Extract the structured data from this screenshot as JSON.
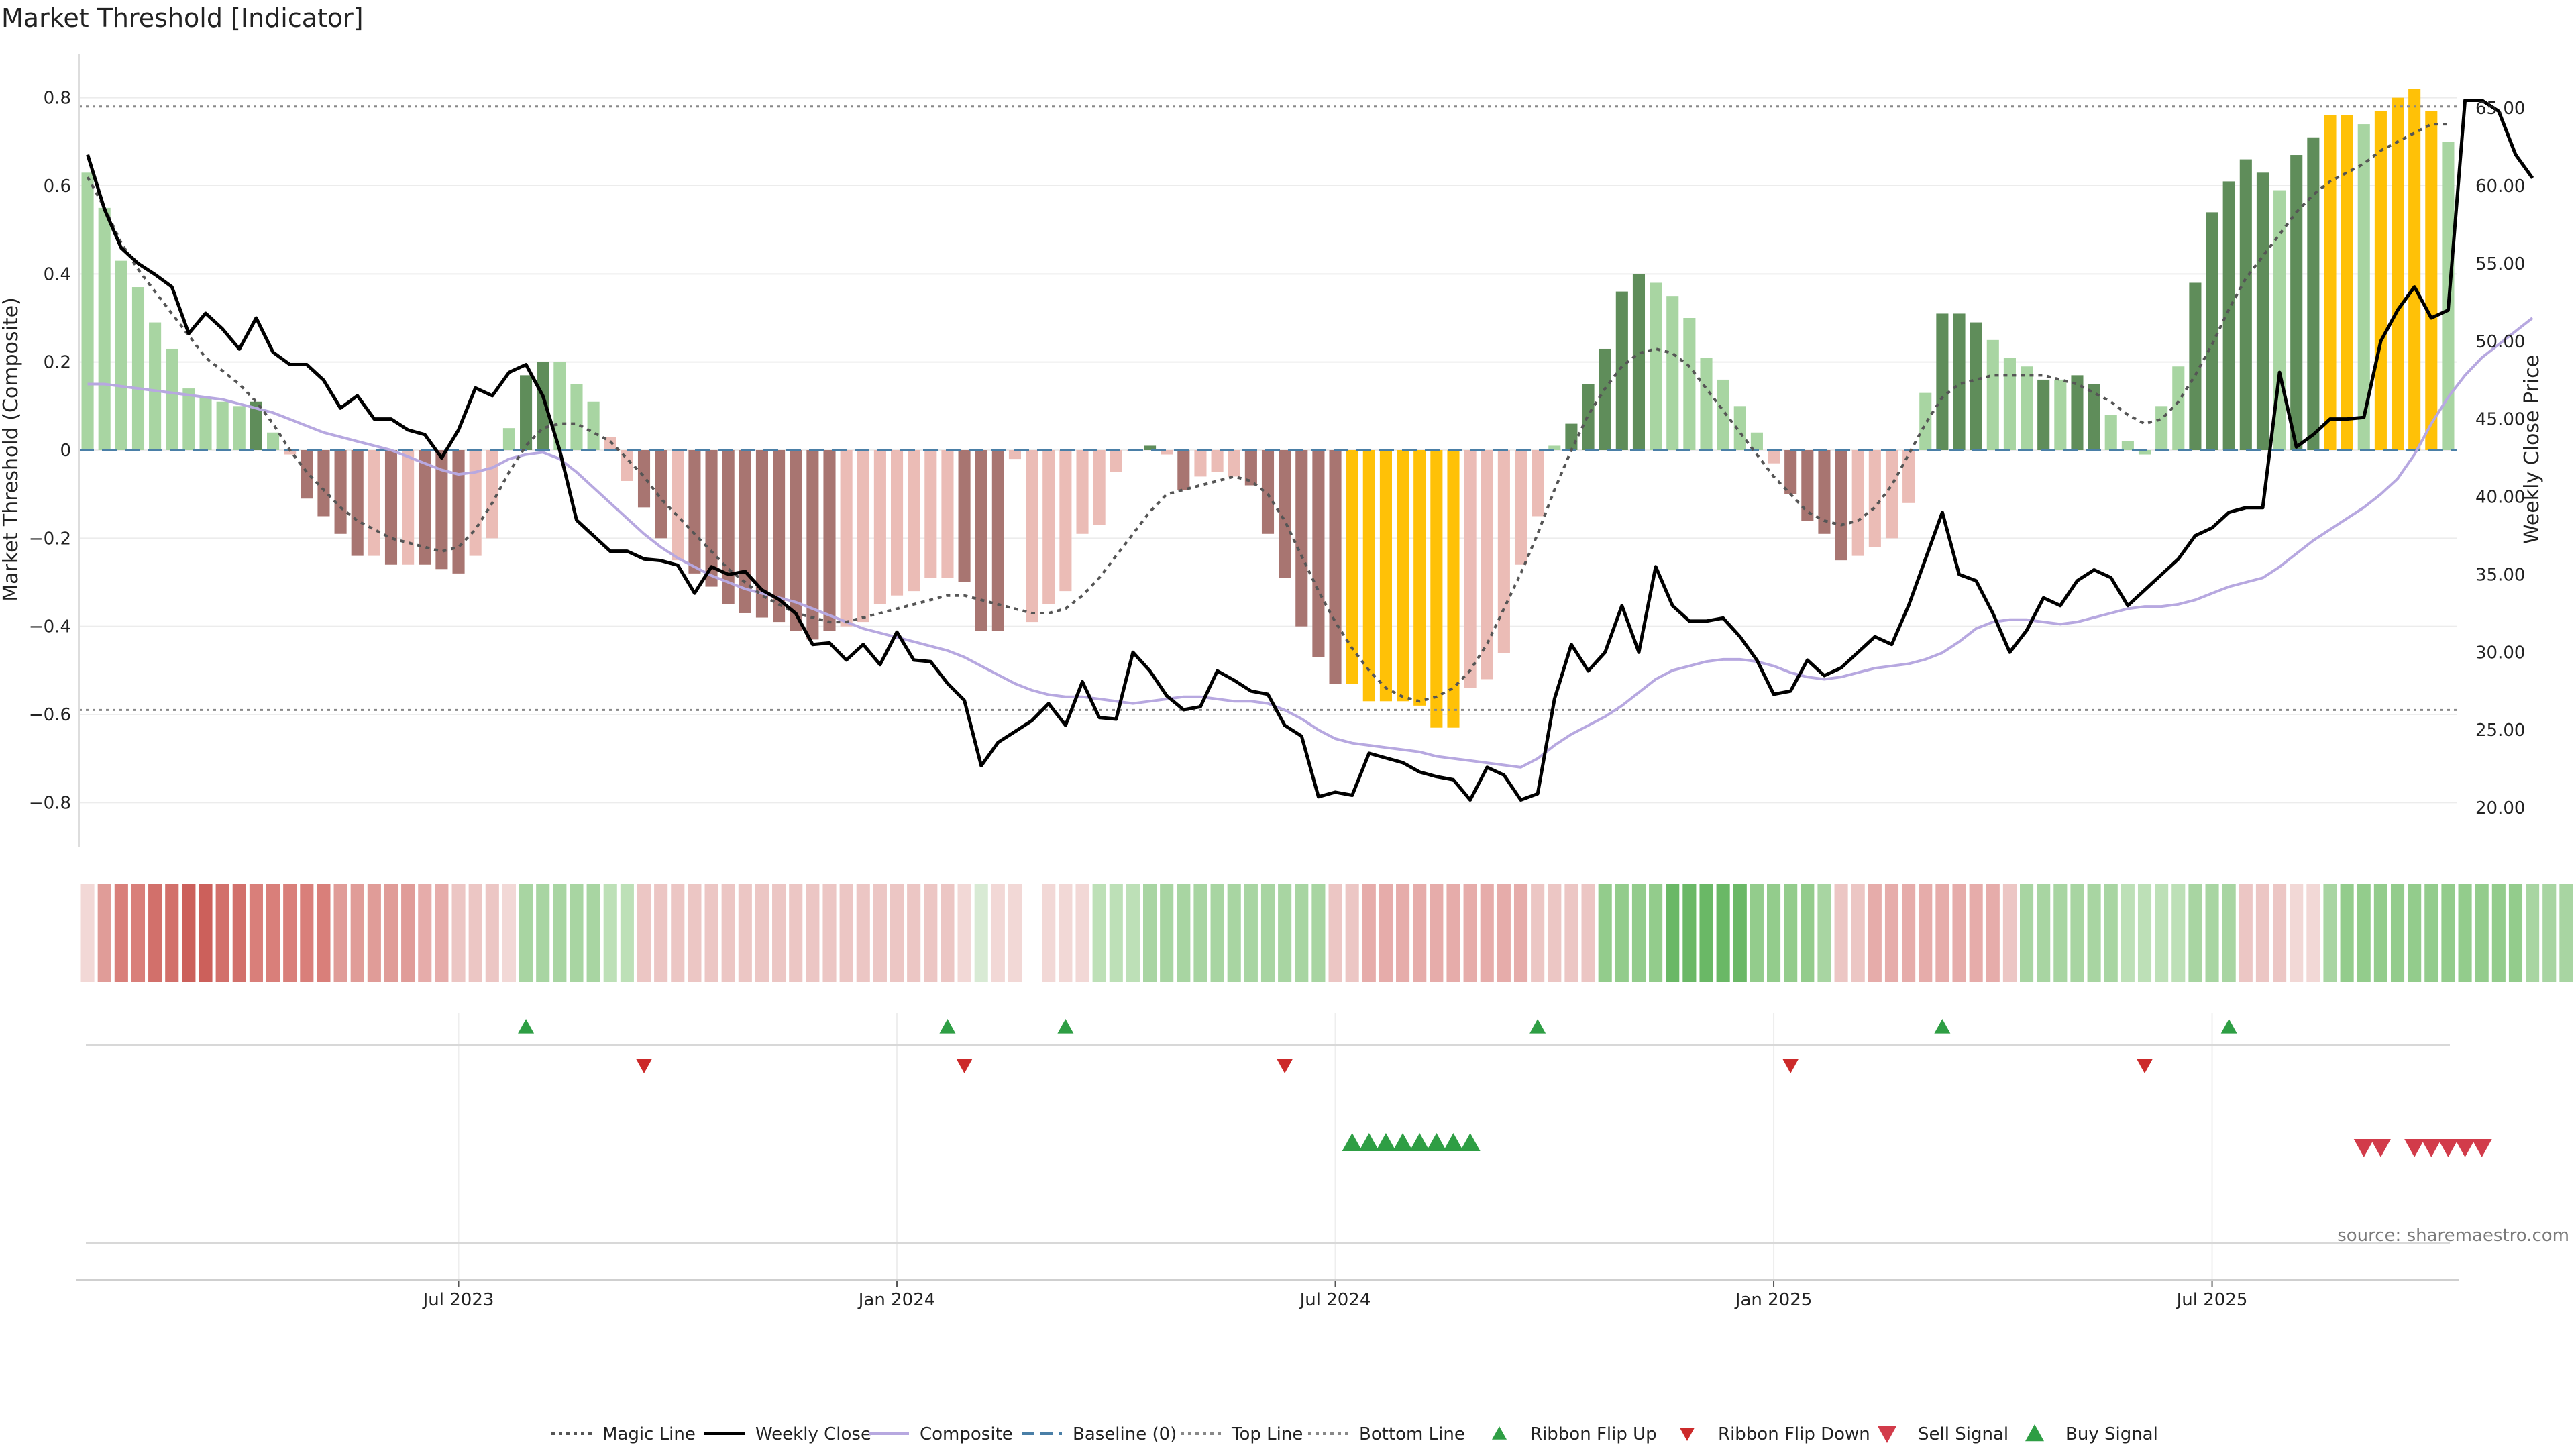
{
  "chart_data": {
    "type": "bar",
    "title": "Market Threshold [Indicator]",
    "ylabel": "Market Threshold (Composite)",
    "y2label": "Weekly Close Price",
    "source": "source: sharemaestro.com",
    "ylim": [
      -0.9,
      0.9
    ],
    "y2lim": [
      17.5,
      68.5
    ],
    "yticks": [
      -0.8,
      -0.6,
      -0.4,
      -0.2,
      0,
      0.2,
      0.4,
      0.6,
      0.8
    ],
    "ytick_labels": [
      "−0.8",
      "−0.6",
      "−0.4",
      "−0.2",
      "0",
      "0.2",
      "0.4",
      "0.6",
      "0.8"
    ],
    "y2ticks": [
      20,
      25,
      30,
      35,
      40,
      45,
      50,
      55,
      60,
      65
    ],
    "y2tick_labels": [
      "20.00",
      "25.00",
      "30.00",
      "35.00",
      "40.00",
      "45.00",
      "50.00",
      "55.00",
      "60.00",
      "65.00"
    ],
    "xticks": [
      {
        "label": "Jul 2023",
        "week": 22
      },
      {
        "label": "Jan 2024",
        "week": 48
      },
      {
        "label": "Jul 2024",
        "week": 74
      },
      {
        "label": "Jan 2025",
        "week": 100
      },
      {
        "label": "Jul 2025",
        "week": 126
      }
    ],
    "top_line": 0.78,
    "bottom_line": -0.59,
    "baseline": 0,
    "composite": [
      0.63,
      0.55,
      0.43,
      0.37,
      0.29,
      0.23,
      0.14,
      0.12,
      0.11,
      0.1,
      0.11,
      0.04,
      -0.01,
      -0.11,
      -0.15,
      -0.19,
      -0.24,
      -0.24,
      -0.26,
      -0.26,
      -0.26,
      -0.27,
      -0.28,
      -0.24,
      -0.2,
      0.05,
      0.17,
      0.2,
      0.2,
      0.15,
      0.11,
      0.03,
      -0.07,
      -0.13,
      -0.2,
      -0.25,
      -0.28,
      -0.31,
      -0.35,
      -0.37,
      -0.38,
      -0.39,
      -0.41,
      -0.43,
      -0.41,
      -0.4,
      -0.39,
      -0.35,
      -0.33,
      -0.32,
      -0.29,
      -0.29,
      -0.3,
      -0.41,
      -0.41,
      -0.02,
      -0.39,
      -0.35,
      -0.32,
      -0.19,
      -0.17,
      -0.05,
      0.0,
      0.01,
      -0.01,
      -0.09,
      -0.06,
      -0.05,
      -0.06,
      -0.08,
      -0.19,
      -0.29,
      -0.4,
      -0.47,
      -0.53,
      -0.53,
      -0.57,
      -0.57,
      -0.57,
      -0.58,
      -0.63,
      -0.63,
      -0.54,
      -0.52,
      -0.46,
      -0.26,
      -0.15,
      0.01,
      0.06,
      0.15,
      0.23,
      0.36,
      0.4,
      0.38,
      0.35,
      0.3,
      0.21,
      0.16,
      0.1,
      0.04,
      -0.03,
      -0.1,
      -0.16,
      -0.19,
      -0.25,
      -0.24,
      -0.22,
      -0.2,
      -0.12,
      0.13,
      0.31,
      0.31,
      0.29,
      0.25,
      0.21,
      0.19,
      0.16,
      0.16,
      0.17,
      0.15,
      0.08,
      0.02,
      -0.01,
      0.1,
      0.19,
      0.38,
      0.54,
      0.61,
      0.66,
      0.63,
      0.59,
      0.67,
      0.71,
      0.76,
      0.76,
      0.74,
      0.77,
      0.8,
      0.82,
      0.77,
      0.7
    ],
    "bar_colors": [
      "#a8d5a2",
      "#a8d5a2",
      "#a8d5a2",
      "#a8d5a2",
      "#a8d5a2",
      "#a8d5a2",
      "#a8d5a2",
      "#a8d5a2",
      "#a8d5a2",
      "#a8d5a2",
      "#5f8d5a",
      "#a8d5a2",
      "#ebbcb6",
      "#a87571",
      "#a87571",
      "#a87571",
      "#a87571",
      "#ebbcb6",
      "#a87571",
      "#ebbcb6",
      "#a87571",
      "#a87571",
      "#a87571",
      "#ebbcb6",
      "#ebbcb6",
      "#a8d5a2",
      "#5f8d5a",
      "#5f8d5a",
      "#a8d5a2",
      "#a8d5a2",
      "#a8d5a2",
      "#ebbcb6",
      "#ebbcb6",
      "#a87571",
      "#a87571",
      "#ebbcb6",
      "#a87571",
      "#a87571",
      "#a87571",
      "#a87571",
      "#a87571",
      "#a87571",
      "#a87571",
      "#a87571",
      "#a87571",
      "#ebbcb6",
      "#ebbcb6",
      "#ebbcb6",
      "#ebbcb6",
      "#ebbcb6",
      "#ebbcb6",
      "#ebbcb6",
      "#a87571",
      "#a87571",
      "#a87571",
      "#ebbcb6",
      "#ebbcb6",
      "#ebbcb6",
      "#ebbcb6",
      "#ebbcb6",
      "#ebbcb6",
      "#ebbcb6",
      "#ebbcb6",
      "#5f8d5a",
      "#ebbcb6",
      "#a87571",
      "#ebbcb6",
      "#ebbcb6",
      "#ebbcb6",
      "#a87571",
      "#a87571",
      "#a87571",
      "#a87571",
      "#a87571",
      "#a87571",
      "#ffc107",
      "#ffc107",
      "#ffc107",
      "#ffc107",
      "#ffc107",
      "#ffc107",
      "#ffc107",
      "#ebbcb6",
      "#ebbcb6",
      "#ebbcb6",
      "#ebbcb6",
      "#ebbcb6",
      "#a8d5a2",
      "#5f8d5a",
      "#5f8d5a",
      "#5f8d5a",
      "#5f8d5a",
      "#5f8d5a",
      "#a8d5a2",
      "#a8d5a2",
      "#a8d5a2",
      "#a8d5a2",
      "#a8d5a2",
      "#a8d5a2",
      "#a8d5a2",
      "#ebbcb6",
      "#a87571",
      "#a87571",
      "#a87571",
      "#a87571",
      "#ebbcb6",
      "#ebbcb6",
      "#ebbcb6",
      "#ebbcb6",
      "#a8d5a2",
      "#5f8d5a",
      "#5f8d5a",
      "#5f8d5a",
      "#a8d5a2",
      "#a8d5a2",
      "#a8d5a2",
      "#5f8d5a",
      "#a8d5a2",
      "#5f8d5a",
      "#5f8d5a",
      "#a8d5a2",
      "#a8d5a2",
      "#a8d5a2",
      "#a8d5a2",
      "#a8d5a2",
      "#5f8d5a",
      "#5f8d5a",
      "#5f8d5a",
      "#5f8d5a",
      "#5f8d5a",
      "#a8d5a2",
      "#5f8d5a",
      "#5f8d5a",
      "#ffc107",
      "#ffc107",
      "#a8d5a2",
      "#ffc107",
      "#ffc107",
      "#ffc107",
      "#ffc107",
      "#a8d5a2"
    ],
    "magic_line": [
      0.62,
      0.55,
      0.47,
      0.41,
      0.36,
      0.31,
      0.26,
      0.21,
      0.18,
      0.15,
      0.11,
      0.06,
      0.0,
      -0.05,
      -0.09,
      -0.13,
      -0.16,
      -0.18,
      -0.2,
      -0.21,
      -0.22,
      -0.23,
      -0.22,
      -0.18,
      -0.12,
      -0.05,
      0.01,
      0.05,
      0.06,
      0.06,
      0.04,
      0.02,
      -0.02,
      -0.06,
      -0.11,
      -0.15,
      -0.19,
      -0.23,
      -0.27,
      -0.3,
      -0.33,
      -0.35,
      -0.37,
      -0.38,
      -0.39,
      -0.39,
      -0.38,
      -0.37,
      -0.36,
      -0.35,
      -0.34,
      -0.33,
      -0.33,
      -0.34,
      -0.35,
      -0.36,
      -0.37,
      -0.37,
      -0.36,
      -0.33,
      -0.29,
      -0.24,
      -0.19,
      -0.14,
      -0.1,
      -0.09,
      -0.08,
      -0.07,
      -0.06,
      -0.07,
      -0.1,
      -0.16,
      -0.24,
      -0.32,
      -0.39,
      -0.45,
      -0.5,
      -0.54,
      -0.56,
      -0.57,
      -0.56,
      -0.54,
      -0.5,
      -0.44,
      -0.36,
      -0.28,
      -0.19,
      -0.09,
      0.0,
      0.08,
      0.14,
      0.19,
      0.22,
      0.23,
      0.22,
      0.19,
      0.14,
      0.09,
      0.04,
      -0.01,
      -0.06,
      -0.1,
      -0.14,
      -0.16,
      -0.17,
      -0.16,
      -0.13,
      -0.08,
      -0.01,
      0.06,
      0.12,
      0.15,
      0.16,
      0.17,
      0.17,
      0.17,
      0.17,
      0.16,
      0.15,
      0.13,
      0.11,
      0.08,
      0.06,
      0.07,
      0.11,
      0.17,
      0.24,
      0.32,
      0.39,
      0.44,
      0.49,
      0.54,
      0.58,
      0.61,
      0.63,
      0.65,
      0.68,
      0.7,
      0.72,
      0.74,
      0.74
    ],
    "composite_line": [
      0.15,
      0.15,
      0.145,
      0.14,
      0.135,
      0.13,
      0.125,
      0.12,
      0.115,
      0.105,
      0.095,
      0.085,
      0.07,
      0.055,
      0.04,
      0.03,
      0.02,
      0.01,
      0.0,
      -0.015,
      -0.03,
      -0.045,
      -0.055,
      -0.05,
      -0.04,
      -0.02,
      -0.01,
      -0.005,
      -0.02,
      -0.05,
      -0.085,
      -0.12,
      -0.155,
      -0.19,
      -0.22,
      -0.245,
      -0.265,
      -0.285,
      -0.3,
      -0.315,
      -0.325,
      -0.335,
      -0.345,
      -0.36,
      -0.375,
      -0.39,
      -0.405,
      -0.415,
      -0.425,
      -0.435,
      -0.445,
      -0.455,
      -0.47,
      -0.49,
      -0.51,
      -0.53,
      -0.545,
      -0.555,
      -0.56,
      -0.56,
      -0.565,
      -0.57,
      -0.575,
      -0.57,
      -0.565,
      -0.56,
      -0.56,
      -0.565,
      -0.57,
      -0.57,
      -0.575,
      -0.59,
      -0.61,
      -0.635,
      -0.655,
      -0.665,
      -0.67,
      -0.675,
      -0.68,
      -0.685,
      -0.695,
      -0.7,
      -0.705,
      -0.71,
      -0.715,
      -0.72,
      -0.7,
      -0.67,
      -0.645,
      -0.625,
      -0.605,
      -0.58,
      -0.55,
      -0.52,
      -0.5,
      -0.49,
      -0.48,
      -0.475,
      -0.475,
      -0.48,
      -0.49,
      -0.505,
      -0.515,
      -0.52,
      -0.515,
      -0.505,
      -0.495,
      -0.49,
      -0.485,
      -0.475,
      -0.46,
      -0.435,
      -0.405,
      -0.39,
      -0.385,
      -0.385,
      -0.39,
      -0.395,
      -0.39,
      -0.38,
      -0.37,
      -0.36,
      -0.355,
      -0.355,
      -0.35,
      -0.34,
      -0.325,
      -0.31,
      -0.3,
      -0.29,
      -0.265,
      -0.235,
      -0.205,
      -0.18,
      -0.155,
      -0.13,
      -0.1,
      -0.065,
      -0.01,
      0.06,
      0.12,
      0.17,
      0.21,
      0.24,
      0.27,
      0.3
    ],
    "weekly_close": [
      62,
      58.5,
      56,
      55,
      54.3,
      53.5,
      50.5,
      51.8,
      50.8,
      49.5,
      51.5,
      49.3,
      48.5,
      48.5,
      47.5,
      45.7,
      46.5,
      45.0,
      45.0,
      44.3,
      44.0,
      42.5,
      44.3,
      47.0,
      46.5,
      48.0,
      48.5,
      46.5,
      43.0,
      38.5,
      37.5,
      36.5,
      36.5,
      36.0,
      35.9,
      35.6,
      33.8,
      35.5,
      35.0,
      35.2,
      34.0,
      33.4,
      32.5,
      30.5,
      30.6,
      29.5,
      30.5,
      29.2,
      31.3,
      29.5,
      29.4,
      28.0,
      26.9,
      22.7,
      24.2,
      24.9,
      25.6,
      26.7,
      25.3,
      28.1,
      25.8,
      25.7,
      30.0,
      28.8,
      27.2,
      26.3,
      26.5,
      28.8,
      28.2,
      27.5,
      27.3,
      25.3,
      24.6,
      20.7,
      21.0,
      20.8,
      23.5,
      23.2,
      22.9,
      22.3,
      22.0,
      21.8,
      20.5,
      22.6,
      22.1,
      20.5,
      20.9,
      27.0,
      30.5,
      28.8,
      30.0,
      33.0,
      30.0,
      35.5,
      33.0,
      32.0,
      32.0,
      32.2,
      31.0,
      29.5,
      27.3,
      27.5,
      29.5,
      28.5,
      29.0,
      30.0,
      31.0,
      30.5,
      33.0,
      36.0,
      39.0,
      35.0,
      34.6,
      32.5,
      30.0,
      31.4,
      33.5,
      33.0,
      34.6,
      35.3,
      34.8,
      33.0,
      34.0,
      35.0,
      36.0,
      37.5,
      38.0,
      39.0,
      39.3,
      39.3,
      48.0,
      43.2,
      44.0,
      45.0,
      45.0,
      45.1,
      50.0,
      52.0,
      53.5,
      51.5,
      52.0,
      65.5,
      65.5,
      64.8,
      62.0,
      60.5
    ],
    "ribbon_colors": [
      "#f2d8d6",
      "#e09c98",
      "#d97f7a",
      "#d97f7a",
      "#d2706b",
      "#d2706b",
      "#cc605b",
      "#cc605b",
      "#d2706b",
      "#d2706b",
      "#d97f7a",
      "#d97f7a",
      "#d97f7a",
      "#d97f7a",
      "#d97f7a",
      "#e09c98",
      "#e09c98",
      "#e09c98",
      "#e09c98",
      "#e09c98",
      "#e6acaa",
      "#e6acaa",
      "#ecc6c4",
      "#ecc6c4",
      "#ecc6c4",
      "#f2d8d6",
      "#a8d5a2",
      "#a8d5a2",
      "#a8d5a2",
      "#a8d5a2",
      "#a8d5a2",
      "#bde0b7",
      "#bde0b7",
      "#ecc6c4",
      "#ecc6c4",
      "#ecc6c4",
      "#ecc6c4",
      "#ecc6c4",
      "#ecc6c4",
      "#ecc6c4",
      "#ecc6c4",
      "#ecc6c4",
      "#ecc6c4",
      "#ecc6c4",
      "#ecc6c4",
      "#ecc6c4",
      "#ecc6c4",
      "#ecc6c4",
      "#ecc6c4",
      "#ecc6c4",
      "#ecc6c4",
      "#ecc6c4",
      "#f2d8d6",
      "#d8ead4",
      "#f2d8d6",
      "#f2d8d6",
      null,
      "#f2d8d6",
      "#f2d8d6",
      "#f2d8d6",
      "#bde0b7",
      "#bde0b7",
      "#bde0b7",
      "#a8d5a2",
      "#a8d5a2",
      "#a8d5a2",
      "#a8d5a2",
      "#a8d5a2",
      "#a8d5a2",
      "#a8d5a2",
      "#a8d5a2",
      "#a8d5a2",
      "#a8d5a2",
      "#a8d5a2",
      "#ecc6c4",
      "#ecc6c4",
      "#e6acaa",
      "#e6acaa",
      "#e6acaa",
      "#e6acaa",
      "#e6acaa",
      "#e6acaa",
      "#e6acaa",
      "#e6acaa",
      "#e6acaa",
      "#e6acaa",
      "#ecc6c4",
      "#ecc6c4",
      "#ecc6c4",
      "#ecc6c4",
      "#93cc8c",
      "#93cc8c",
      "#93cc8c",
      "#93cc8c",
      "#6ab866",
      "#6ab866",
      "#6ab866",
      "#6ab866",
      "#6ab866",
      "#93cc8c",
      "#93cc8c",
      "#93cc8c",
      "#93cc8c",
      "#a8d5a2",
      "#ecc6c4",
      "#ecc6c4",
      "#e6acaa",
      "#e6acaa",
      "#e6acaa",
      "#e6acaa",
      "#e6acaa",
      "#e6acaa",
      "#e6acaa",
      "#e6acaa",
      "#ecc6c4",
      "#a8d5a2",
      "#a8d5a2",
      "#a8d5a2",
      "#a8d5a2",
      "#a8d5a2",
      "#a8d5a2",
      "#bde0b7",
      "#bde0b7",
      "#bde0b7",
      "#bde0b7",
      "#a8d5a2",
      "#a8d5a2",
      "#a8d5a2",
      "#ecc6c4",
      "#ecc6c4",
      "#ecc6c4",
      "#f2d8d6",
      "#f2d8d6",
      "#a8d5a2",
      "#93cc8c",
      "#93cc8c",
      "#93cc8c",
      "#93cc8c",
      "#93cc8c",
      "#93cc8c",
      "#93cc8c",
      "#93cc8c",
      "#93cc8c",
      "#93cc8c",
      "#93cc8c",
      "#a8d5a2",
      "#a8d5a2",
      "#a8d5a2",
      "#a8d5a2"
    ],
    "ribbon_flip_up_weeks": [
      26,
      51,
      58,
      86,
      110,
      127
    ],
    "ribbon_flip_down_weeks": [
      33,
      52,
      71,
      101,
      122
    ],
    "buy_signal_weeks": [
      75,
      76,
      77,
      78,
      79,
      80,
      81,
      82
    ],
    "sell_signal_weeks": [
      135,
      136,
      138,
      139,
      140,
      141,
      142
    ],
    "legend_position": "bottom-center",
    "legend": [
      {
        "key": "magic",
        "label": "Magic Line",
        "color": "#555555",
        "kind": "dotted"
      },
      {
        "key": "close",
        "label": "Weekly Close",
        "color": "#000000",
        "kind": "solid"
      },
      {
        "key": "composite",
        "label": "Composite",
        "color": "#b7a8e0",
        "kind": "solid"
      },
      {
        "key": "baseline",
        "label": "Baseline (0)",
        "color": "#4a7fa7",
        "kind": "dashed"
      },
      {
        "key": "top",
        "label": "Top Line",
        "color": "#888888",
        "kind": "dotted"
      },
      {
        "key": "bottom",
        "label": "Bottom Line",
        "color": "#888888",
        "kind": "dotted"
      },
      {
        "key": "flipup",
        "label": "Ribbon Flip Up",
        "color": "#2e9e44",
        "kind": "tri-up"
      },
      {
        "key": "flipdown",
        "label": "Ribbon Flip Down",
        "color": "#cc2a2a",
        "kind": "tri-down"
      },
      {
        "key": "sell",
        "label": "Sell Signal",
        "color": "#d23b4a",
        "kind": "tri-down-big"
      },
      {
        "key": "buy",
        "label": "Buy Signal",
        "color": "#2e9e44",
        "kind": "tri-up-big"
      }
    ]
  }
}
